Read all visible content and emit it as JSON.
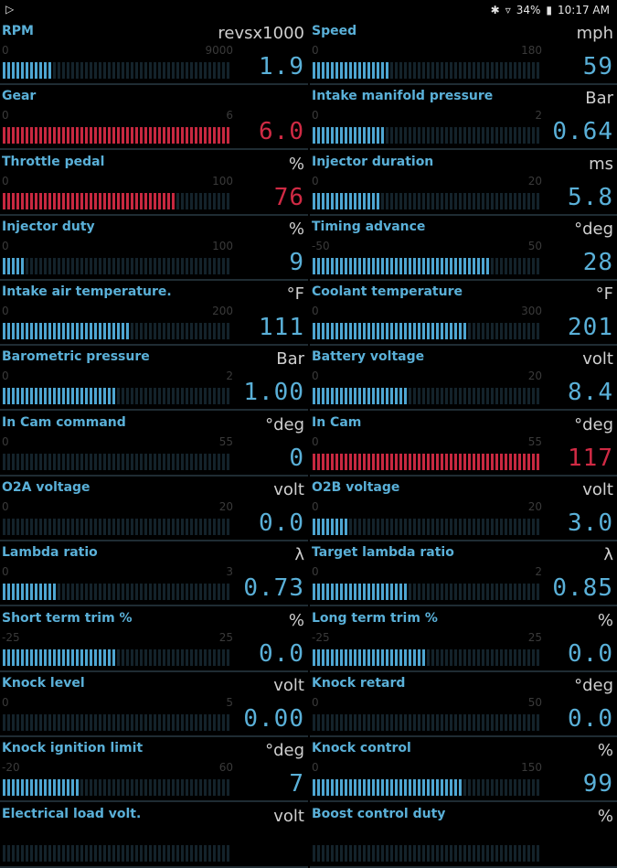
{
  "status": {
    "left_icon": "play-icon",
    "battery": "34%",
    "time": "10:17 AM"
  },
  "gauges": [
    {
      "name": "RPM",
      "unit": "revsx1000",
      "min": "0",
      "max": "9000",
      "value": "1.9",
      "fill": 0.22,
      "alert": false
    },
    {
      "name": "Speed",
      "unit": "mph",
      "min": "0",
      "max": "180",
      "value": "59",
      "fill": 0.33,
      "alert": false
    },
    {
      "name": "Gear",
      "unit": "",
      "min": "0",
      "max": "6",
      "value": "6.0",
      "fill": 1.0,
      "alert": true
    },
    {
      "name": "Intake manifold pressure",
      "unit": "Bar",
      "min": "0",
      "max": "2",
      "value": "0.64",
      "fill": 0.32,
      "alert": false
    },
    {
      "name": "Throttle pedal",
      "unit": "%",
      "min": "0",
      "max": "100",
      "value": "76",
      "fill": 0.76,
      "alert": true
    },
    {
      "name": "Injector duration",
      "unit": "ms",
      "min": "0",
      "max": "20",
      "value": "5.8",
      "fill": 0.29,
      "alert": false
    },
    {
      "name": "Injector duty",
      "unit": "%",
      "min": "0",
      "max": "100",
      "value": "9",
      "fill": 0.09,
      "alert": false
    },
    {
      "name": "Timing advance",
      "unit": "°deg",
      "min": "-50",
      "max": "50",
      "value": "28",
      "fill": 0.78,
      "alert": false
    },
    {
      "name": "Intake air temperature.",
      "unit": "°F",
      "min": "0",
      "max": "200",
      "value": "111",
      "fill": 0.56,
      "alert": false
    },
    {
      "name": "Coolant temperature",
      "unit": "°F",
      "min": "0",
      "max": "300",
      "value": "201",
      "fill": 0.67,
      "alert": false
    },
    {
      "name": "Barometric pressure",
      "unit": "Bar",
      "min": "0",
      "max": "2",
      "value": "1.00",
      "fill": 0.5,
      "alert": false
    },
    {
      "name": "Battery voltage",
      "unit": "volt",
      "min": "0",
      "max": "20",
      "value": "8.4",
      "fill": 0.42,
      "alert": false
    },
    {
      "name": "In Cam command",
      "unit": "°deg",
      "min": "0",
      "max": "55",
      "value": "0",
      "fill": 0.0,
      "alert": false
    },
    {
      "name": "In Cam",
      "unit": "°deg",
      "min": "0",
      "max": "55",
      "value": "117",
      "fill": 1.0,
      "alert": true
    },
    {
      "name": "O2A voltage",
      "unit": "volt",
      "min": "0",
      "max": "20",
      "value": "0.0",
      "fill": 0.0,
      "alert": false
    },
    {
      "name": "O2B voltage",
      "unit": "volt",
      "min": "0",
      "max": "20",
      "value": "3.0",
      "fill": 0.15,
      "alert": false
    },
    {
      "name": "Lambda ratio",
      "unit": "λ",
      "min": "0",
      "max": "3",
      "value": "0.73",
      "fill": 0.24,
      "alert": false
    },
    {
      "name": "Target lambda ratio",
      "unit": "λ",
      "min": "0",
      "max": "2",
      "value": "0.85",
      "fill": 0.42,
      "alert": false
    },
    {
      "name": "Short term trim %",
      "unit": "%",
      "min": "-25",
      "max": "25",
      "value": "0.0",
      "fill": 0.5,
      "alert": false
    },
    {
      "name": "Long term trim %",
      "unit": "%",
      "min": "-25",
      "max": "25",
      "value": "0.0",
      "fill": 0.5,
      "alert": false
    },
    {
      "name": "Knock level",
      "unit": "volt",
      "min": "0",
      "max": "5",
      "value": "0.00",
      "fill": 0.0,
      "alert": false
    },
    {
      "name": "Knock retard",
      "unit": "°deg",
      "min": "0",
      "max": "50",
      "value": "0.0",
      "fill": 0.0,
      "alert": false
    },
    {
      "name": "Knock ignition limit",
      "unit": "°deg",
      "min": "-20",
      "max": "60",
      "value": "7",
      "fill": 0.34,
      "alert": false
    },
    {
      "name": "Knock control",
      "unit": "%",
      "min": "0",
      "max": "150",
      "value": "99",
      "fill": 0.66,
      "alert": false
    },
    {
      "name": "Electrical load volt.",
      "unit": "volt",
      "min": "",
      "max": "",
      "value": "",
      "fill": 0.0,
      "alert": false
    },
    {
      "name": "Boost control duty",
      "unit": "%",
      "min": "",
      "max": "",
      "value": "",
      "fill": 0.0,
      "alert": false
    }
  ]
}
